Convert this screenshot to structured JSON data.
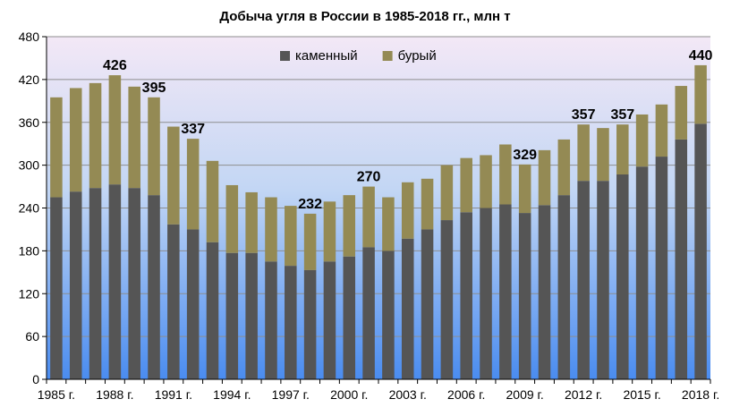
{
  "chart_data": {
    "type": "bar",
    "stacked": true,
    "title": "Добыча угля в России в 1985-2018 гг., млн т",
    "xlabel": "",
    "ylabel": "",
    "ylim": [
      0,
      480
    ],
    "yticks": [
      "0",
      "60",
      "120",
      "180",
      "240",
      "300",
      "360",
      "420",
      "480"
    ],
    "grid": true,
    "legend_position": "top-center",
    "x": [
      1985,
      1986,
      1987,
      1988,
      1989,
      1990,
      1991,
      1992,
      1993,
      1994,
      1995,
      1996,
      1997,
      1998,
      1999,
      2000,
      2001,
      2002,
      2003,
      2004,
      2005,
      2006,
      2007,
      2008,
      2009,
      2010,
      2011,
      2012,
      2013,
      2014,
      2015,
      2016,
      2017,
      2018
    ],
    "x_tick_labels": [
      {
        "year": 1985,
        "text": "1985 г."
      },
      {
        "year": 1988,
        "text": "1988 г."
      },
      {
        "year": 1991,
        "text": "1991 г."
      },
      {
        "year": 1994,
        "text": "1994 г."
      },
      {
        "year": 1997,
        "text": "1997 г."
      },
      {
        "year": 2000,
        "text": "2000 г."
      },
      {
        "year": 2003,
        "text": "2003 г."
      },
      {
        "year": 2006,
        "text": "2006 г."
      },
      {
        "year": 2009,
        "text": "2009 г."
      },
      {
        "year": 2012,
        "text": "2012 г."
      },
      {
        "year": 2015,
        "text": "2015 г."
      },
      {
        "year": 2018,
        "text": "2018 г."
      }
    ],
    "series": [
      {
        "name": "каменный",
        "color": "#555555",
        "values": [
          255,
          263,
          268,
          273,
          268,
          258,
          217,
          210,
          192,
          177,
          177,
          165,
          159,
          153,
          165,
          172,
          185,
          180,
          197,
          210,
          223,
          234,
          240,
          245,
          233,
          244,
          258,
          278,
          278,
          287,
          298,
          312,
          336,
          358
        ]
      },
      {
        "name": "бурый",
        "color": "#948a54",
        "values": [
          140,
          145,
          147,
          153,
          142,
          137,
          137,
          127,
          114,
          95,
          85,
          90,
          84,
          79,
          84,
          86,
          85,
          75,
          79,
          71,
          77,
          76,
          74,
          84,
          68,
          77,
          78,
          79,
          74,
          70,
          73,
          73,
          75,
          82
        ]
      }
    ],
    "data_labels": [
      {
        "year": 1988,
        "text": "426"
      },
      {
        "year": 1990,
        "text": "395"
      },
      {
        "year": 1992,
        "text": "337"
      },
      {
        "year": 1998,
        "text": "232"
      },
      {
        "year": 2001,
        "text": "270"
      },
      {
        "year": 2009,
        "text": "329"
      },
      {
        "year": 2012,
        "text": "357"
      },
      {
        "year": 2014,
        "text": "357"
      },
      {
        "year": 2018,
        "text": "440"
      }
    ],
    "colors": {
      "plot_top": "#f3e8f6",
      "plot_bottom": "#4a8cf0",
      "grid": "#8e8e8e",
      "axis": "#000000"
    }
  }
}
